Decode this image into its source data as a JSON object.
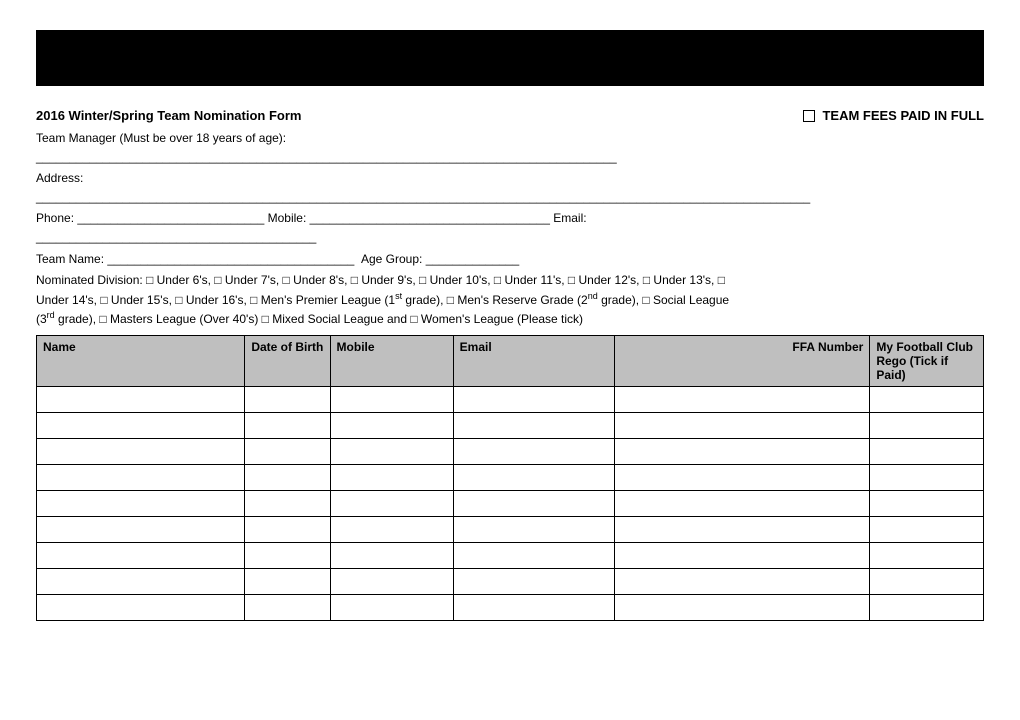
{
  "header": {
    "form_title": "2016 Winter/Spring Team Nomination Form",
    "fees_label": "TEAM FEES PAID IN FULL"
  },
  "fields": {
    "team_manager_label": "Team Manager (Must be over 18 years of age):",
    "manager_line": "_______________________________________________________________________________________",
    "address_label": "Address:",
    "address_line": "____________________________________________________________________________________________________________________",
    "phone_label": "Phone:",
    "phone_blank": "____________________________",
    "mobile_label": "Mobile:",
    "mobile_blank": "____________________________________",
    "email_label": "Email:",
    "email_blank": "__________________________________________",
    "team_name_label": "Team Name:",
    "team_name_blank": "_____________________________________",
    "age_group_label": "Age Group:",
    "age_group_blank": "______________"
  },
  "divisions": {
    "intro": "Nominated Division:",
    "options_line1": "□ Under 6's,    □ Under 7's,    □ Under 8's,    □ Under 9's,    □ Under 10's,    □ Under 11's,    □ Under 12's,    □ Under 13's,    □",
    "options_line2_pre": "Under 14's,      □ Under 15's,    □ Under 16's,      □ Men's Premier League (1",
    "sup1": "st",
    "options_line2_mid": " grade),    □ Men's Reserve Grade (2",
    "sup2": "nd",
    "options_line2_post": " grade),        □  Social League",
    "options_line3_pre": "(3",
    "sup3": "rd",
    "options_line3_post": " grade),                           □ Masters League (Over 40's)   □ Mixed Social League and    □ Women's League  (Please tick)"
  },
  "table": {
    "columns": {
      "name": "Name",
      "dob": "Date of Birth",
      "mobile": "Mobile",
      "email": "Email",
      "ffa": "FFA Number",
      "rego": "My Football Club Rego (Tick if Paid)"
    },
    "row_count": 9
  },
  "style": {
    "header_bg": "#bfbfbf",
    "border_color": "#000000",
    "page_bg": "#ffffff",
    "font_size_base": 12,
    "black_bar_height": 56
  }
}
